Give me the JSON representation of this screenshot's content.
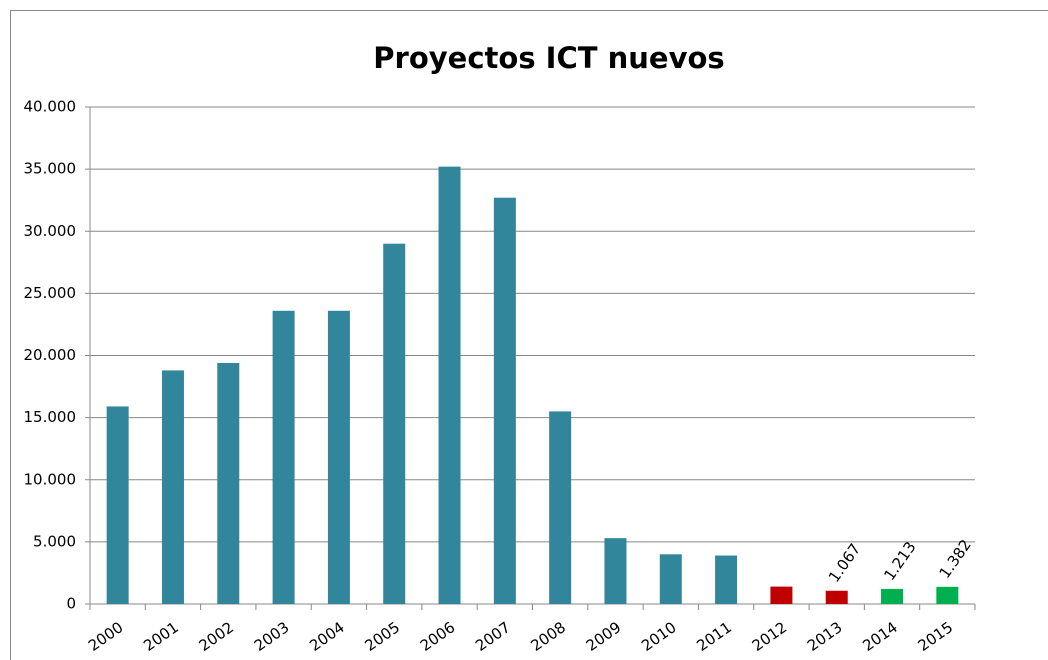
{
  "chart_data": {
    "type": "bar",
    "title": "Proyectos ICT nuevos",
    "categories": [
      "2000",
      "2001",
      "2002",
      "2003",
      "2004",
      "2005",
      "2006",
      "2007",
      "2008",
      "2009",
      "2010",
      "2011",
      "2012",
      "2013",
      "2014",
      "2015"
    ],
    "values": [
      15900,
      18800,
      19400,
      23600,
      23600,
      29000,
      35200,
      32700,
      15500,
      5300,
      4000,
      3900,
      1400,
      1067,
      1213,
      1382
    ],
    "value_labels": [
      null,
      null,
      null,
      null,
      null,
      null,
      null,
      null,
      null,
      null,
      null,
      null,
      null,
      "1.067",
      "1.213",
      "1.382"
    ],
    "colors": [
      "#31869b",
      "#31869b",
      "#31869b",
      "#31869b",
      "#31869b",
      "#31869b",
      "#31869b",
      "#31869b",
      "#31869b",
      "#31869b",
      "#31869b",
      "#31869b",
      "#c00000",
      "#c00000",
      "#00b050",
      "#00b050"
    ],
    "ylim": [
      0,
      40000
    ],
    "yticks": [
      0,
      {
        "value": 5000,
        "label": "5.000"
      },
      {
        "value": 10000,
        "label": "10.000"
      },
      {
        "value": 15000,
        "label": "15.000"
      },
      {
        "value": 20000,
        "label": "20.000"
      },
      {
        "value": 25000,
        "label": "25.000"
      },
      {
        "value": 30000,
        "label": "30.000"
      },
      {
        "value": 35000,
        "label": "35.000"
      },
      {
        "value": 40000,
        "label": "40.000"
      }
    ],
    "grid": true
  }
}
